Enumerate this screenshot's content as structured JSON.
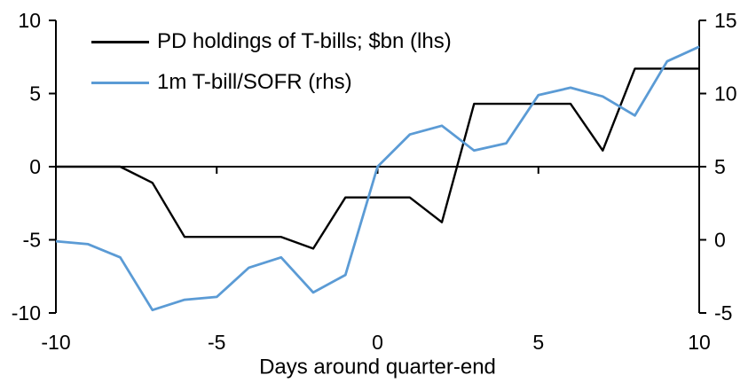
{
  "colors": {
    "background": "#ffffff",
    "axis": "#000000",
    "text": "#000000",
    "series_black": "#000000",
    "series_blue": "#5b9bd5"
  },
  "legend": {
    "items": [
      {
        "label": "PD holdings of T-bills; $bn (lhs)",
        "color": "#000000"
      },
      {
        "label": "1m T-bill/SOFR (rhs)",
        "color": "#5b9bd5"
      }
    ]
  },
  "chart_data": {
    "type": "line",
    "x": [
      -10,
      -9,
      -8,
      -7,
      -6,
      -5,
      -4,
      -3,
      -2,
      -1,
      0,
      1,
      2,
      3,
      4,
      5,
      6,
      7,
      8,
      9,
      10
    ],
    "series": [
      {
        "name": "PD holdings of T-bills; $bn (lhs)",
        "axis": "left",
        "color": "#000000",
        "stroke_width": 2.4,
        "values": [
          0,
          0,
          0,
          -1.1,
          -4.8,
          -4.8,
          -4.8,
          -4.8,
          -5.6,
          -2.1,
          -2.1,
          -2.1,
          -3.8,
          4.3,
          4.3,
          4.3,
          4.3,
          1.1,
          6.7,
          6.7,
          6.7
        ]
      },
      {
        "name": "1m T-bill/SOFR (rhs)",
        "axis": "right",
        "color": "#5b9bd5",
        "stroke_width": 2.8,
        "values": [
          -0.1,
          -0.3,
          -1.2,
          -4.8,
          -4.1,
          -3.9,
          -1.9,
          -1.2,
          -3.6,
          -2.4,
          5.0,
          7.2,
          7.8,
          6.1,
          6.6,
          9.9,
          10.4,
          9.8,
          8.5,
          12.2,
          13.2
        ]
      }
    ],
    "xlabel": "Days around quarter-end",
    "x_ticks": [
      -10,
      -5,
      0,
      5,
      10
    ],
    "x_tick_labels": [
      "-10",
      "-5",
      "0",
      "5",
      "10"
    ],
    "left_axis": {
      "range": [
        -10,
        10
      ],
      "ticks": [
        10,
        5,
        0,
        -5,
        -10
      ],
      "tick_labels": [
        "10",
        "5",
        "0",
        "-5",
        "-10"
      ]
    },
    "right_axis": {
      "range": [
        -5,
        15
      ],
      "ticks": [
        15,
        10,
        5,
        0,
        -5
      ],
      "tick_labels": [
        "15",
        "10",
        "5",
        "0",
        "-5"
      ]
    },
    "grid": false,
    "legend_position": "top-left-inside"
  }
}
